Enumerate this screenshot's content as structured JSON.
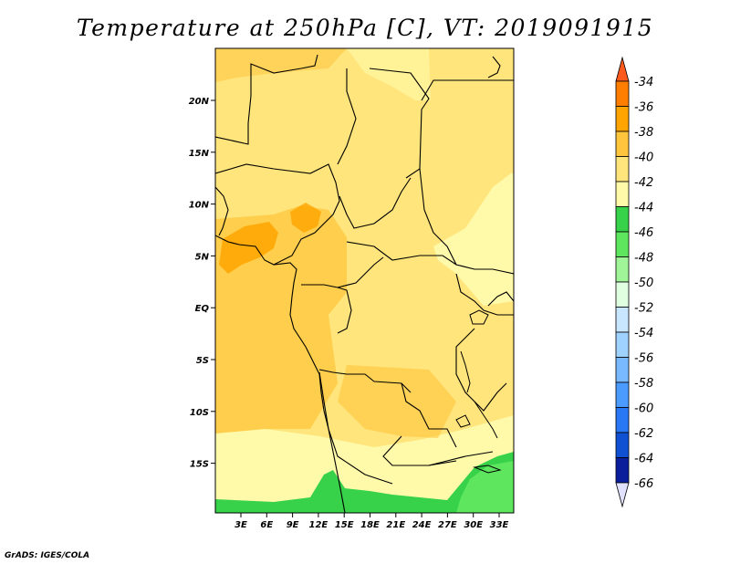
{
  "title": "Temperature at 250hPa [C], VT: 2019091915",
  "credit": "GrADS: IGES/COLA",
  "lat_labels": [
    "20N",
    "15N",
    "10N",
    "5N",
    "EQ",
    "5S",
    "10S",
    "15S"
  ],
  "lon_labels": [
    "3E",
    "6E",
    "9E",
    "12E",
    "15E",
    "18E",
    "21E",
    "24E",
    "27E",
    "30E",
    "33E"
  ],
  "colorbar": {
    "labels": [
      "-34",
      "-36",
      "-38",
      "-40",
      "-42",
      "-44",
      "-46",
      "-48",
      "-50",
      "-52",
      "-54",
      "-56",
      "-58",
      "-60",
      "-62",
      "-64",
      "-66"
    ],
    "colors": [
      "#ff5a1e",
      "#ff7e00",
      "#ffa400",
      "#ffc53c",
      "#ffe57c",
      "#fffaaa",
      "#37d24a",
      "#5fe65f",
      "#a0f599",
      "#e0ffe0",
      "#c8e6ff",
      "#a0d2ff",
      "#78b9ff",
      "#4b9bff",
      "#2878f5",
      "#1050d2",
      "#0a1e9c",
      "#e0e0ff"
    ]
  },
  "map": {
    "background": "#ffe57c",
    "regions": {
      "darker_38_40": "#ffc53c",
      "spot_36_38": "#ffa400",
      "light_42_44": "#fffaaa",
      "green_44_46": "#37d24a",
      "green_46_48": "#5fe65f"
    }
  }
}
